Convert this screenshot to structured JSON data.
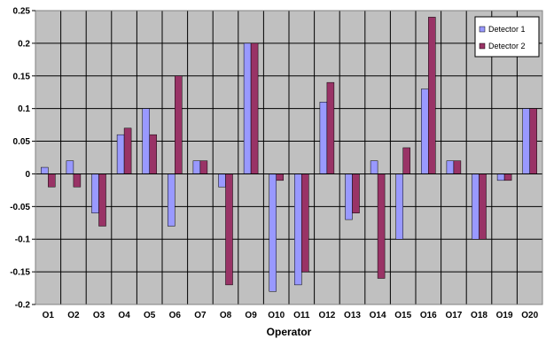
{
  "chart_data": {
    "type": "bar",
    "title": "",
    "xlabel": "Operator",
    "ylabel": "",
    "ylim": [
      -0.2,
      0.25
    ],
    "yticks": [
      0.25,
      0.2,
      0.15,
      0.1,
      0.05,
      0,
      -0.05,
      -0.1,
      -0.15,
      -0.2
    ],
    "ytick_labels": [
      "0.25",
      "0.2",
      "0.15",
      "0.1",
      "0.05",
      "0",
      "-0.05",
      "-0.1",
      "-0.15",
      "-0.2"
    ],
    "grid": true,
    "legend_position": "top-right",
    "plot_background": "#c0c0c0",
    "categories": [
      "O1",
      "O2",
      "O3",
      "O4",
      "O5",
      "O6",
      "O7",
      "O8",
      "O9",
      "O10",
      "O11",
      "O12",
      "O13",
      "O14",
      "O15",
      "O16",
      "O17",
      "O18",
      "O19",
      "O20"
    ],
    "series": [
      {
        "name": "Detector 1",
        "color": "#9999ff",
        "values": [
          0.01,
          0.02,
          -0.06,
          0.06,
          0.1,
          -0.08,
          0.02,
          -0.02,
          0.2,
          -0.18,
          -0.17,
          0.11,
          -0.07,
          0.02,
          -0.1,
          0.13,
          0.02,
          -0.1,
          -0.01,
          0.1
        ]
      },
      {
        "name": "Detector 2",
        "color": "#993366",
        "values": [
          -0.02,
          -0.02,
          -0.08,
          0.07,
          0.06,
          0.15,
          0.02,
          -0.17,
          0.2,
          -0.01,
          -0.15,
          0.14,
          -0.06,
          -0.16,
          0.04,
          0.24,
          0.02,
          -0.1,
          -0.01,
          0.1
        ]
      }
    ]
  }
}
